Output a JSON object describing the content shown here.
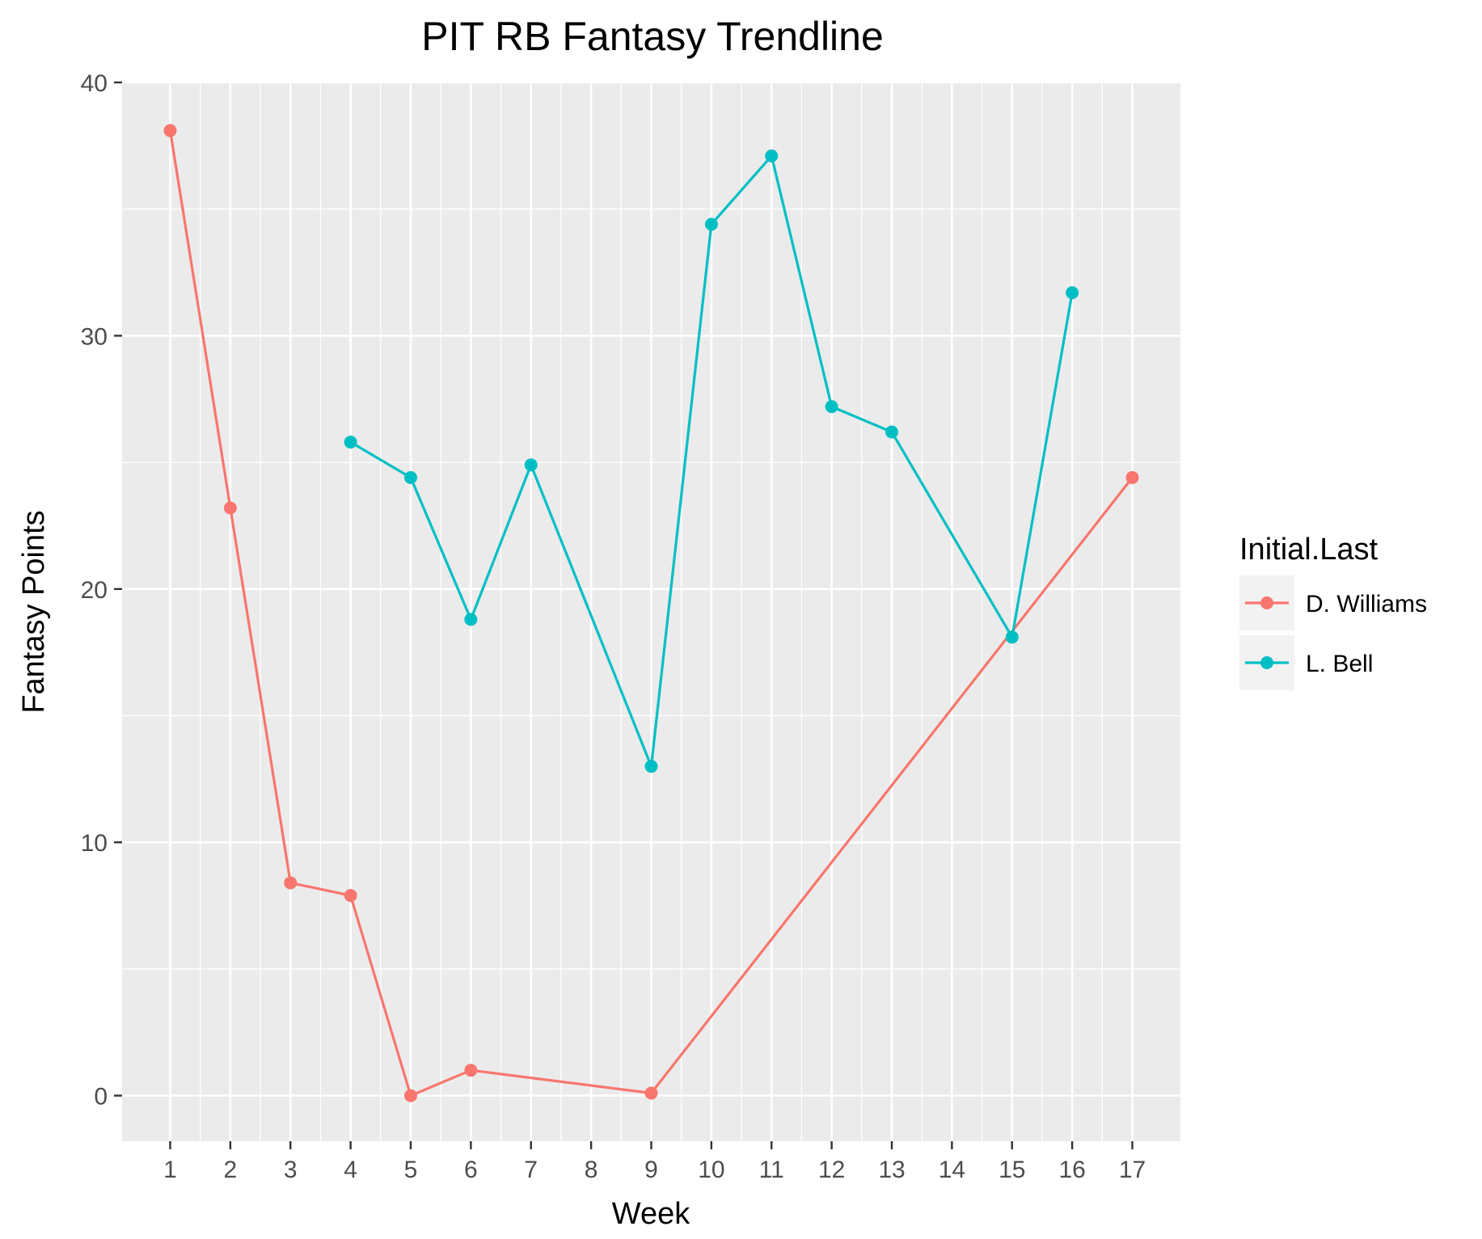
{
  "chart_data": {
    "type": "line",
    "title": "PIT RB Fantasy Trendline",
    "xlabel": "Week",
    "ylabel": "Fantasy Points",
    "x_ticks": [
      1,
      2,
      3,
      4,
      5,
      6,
      7,
      8,
      9,
      10,
      11,
      12,
      13,
      14,
      15,
      16,
      17
    ],
    "y_ticks": [
      0,
      10,
      20,
      30,
      40
    ],
    "xlim": [
      0.2,
      17.8
    ],
    "ylim": [
      -1.8,
      40
    ],
    "grid": true,
    "legend": {
      "title": "Initial.Last",
      "placement": "right"
    },
    "series": [
      {
        "name": "D. Williams",
        "color": "#F8766D",
        "points": [
          {
            "x": 1,
            "y": 38.1
          },
          {
            "x": 2,
            "y": 23.2
          },
          {
            "x": 3,
            "y": 8.4
          },
          {
            "x": 4,
            "y": 7.9
          },
          {
            "x": 5,
            "y": 0.0
          },
          {
            "x": 6,
            "y": 1.0
          },
          {
            "x": 9,
            "y": 0.1
          },
          {
            "x": 17,
            "y": 24.4
          }
        ]
      },
      {
        "name": "L. Bell",
        "color": "#00BFC4",
        "points": [
          {
            "x": 4,
            "y": 25.8
          },
          {
            "x": 5,
            "y": 24.4
          },
          {
            "x": 6,
            "y": 18.8
          },
          {
            "x": 7,
            "y": 24.9
          },
          {
            "x": 9,
            "y": 13.0
          },
          {
            "x": 10,
            "y": 34.4
          },
          {
            "x": 11,
            "y": 37.1
          },
          {
            "x": 12,
            "y": 27.2
          },
          {
            "x": 13,
            "y": 26.2
          },
          {
            "x": 15,
            "y": 18.1
          },
          {
            "x": 16,
            "y": 31.7
          }
        ]
      }
    ],
    "panel_background": "#EBEBEB",
    "grid_color": "#FFFFFF"
  }
}
